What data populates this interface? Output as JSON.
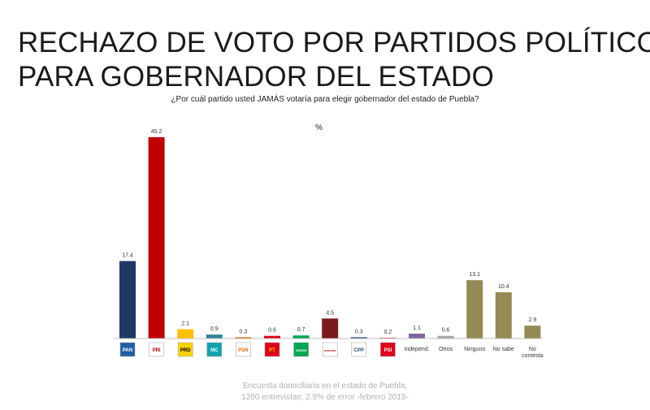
{
  "title_line1": "RECHAZO DE VOTO POR PARTIDOS POLÍTICOS",
  "title_line2": "PARA GOBERNADOR DEL ESTADO",
  "question": "¿Por cuál partido usted JAMÁS votaría para elegir gobernador del estado de Puebla?",
  "unit": "%",
  "source_line1": "Encuesta domiciliaria en el estado de Puebla,",
  "source_line2": "1200 entrevistas; 2.9% de error -febrero 2019-",
  "chart_data": {
    "type": "bar",
    "categories": [
      "PAN",
      "PRI",
      "PRD",
      "MC",
      "PSN",
      "PT",
      "VERDE",
      "morena",
      "Compromiso por Puebla",
      "PSI",
      "Independ.",
      "Otros",
      "Ninguno",
      "No sabe",
      "No contesta"
    ],
    "values": [
      17.4,
      45.2,
      2.1,
      0.9,
      0.3,
      0.6,
      0.7,
      4.5,
      0.3,
      0.2,
      1.1,
      0.6,
      13.1,
      10.4,
      2.9
    ],
    "value_labels": [
      "17.4",
      "45.2",
      "2.1",
      "0.9",
      "0.3",
      "0.6",
      "0.7",
      "4.5",
      "0.3",
      "0.2",
      "1.1",
      "0.6",
      "13.1",
      "10.4",
      "2.9"
    ],
    "colors": [
      "#1f3864",
      "#c00000",
      "#ffc000",
      "#31849b",
      "#e26b0a",
      "#e0001b",
      "#00a651",
      "#7b1a1a",
      "#1f497d",
      "#d9534f",
      "#8064a2",
      "#a6a6a6",
      "#948a54",
      "#948a54",
      "#948a54"
    ],
    "text_labels": [
      "",
      "",
      "",
      "",
      "",
      "",
      "",
      "",
      "",
      "",
      "Independ.",
      "Otros",
      "Ninguno",
      "No sabe",
      "No contesta"
    ],
    "logos": [
      {
        "text": "PAN",
        "bg": "#1f5fa8",
        "fg": "#ffffff"
      },
      {
        "text": "PRI",
        "bg": "#ffffff",
        "fg": "#c00000"
      },
      {
        "text": "PRD",
        "bg": "#ffd200",
        "fg": "#000000"
      },
      {
        "text": "MC",
        "bg": "#0fa3b1",
        "fg": "#ffffff"
      },
      {
        "text": "PSN",
        "bg": "#ffffff",
        "fg": "#e26b0a"
      },
      {
        "text": "PT",
        "bg": "#e0001b",
        "fg": "#ffd200"
      },
      {
        "text": "VERDE",
        "bg": "#00a651",
        "fg": "#ffffff"
      },
      {
        "text": "morena",
        "bg": "#ffffff",
        "fg": "#b5121b"
      },
      {
        "text": "CPP",
        "bg": "#ffffff",
        "fg": "#1f497d"
      },
      {
        "text": "PSI",
        "bg": "#e0001b",
        "fg": "#ffffff"
      }
    ],
    "ylim": [
      0,
      45.2
    ],
    "grid": false
  }
}
